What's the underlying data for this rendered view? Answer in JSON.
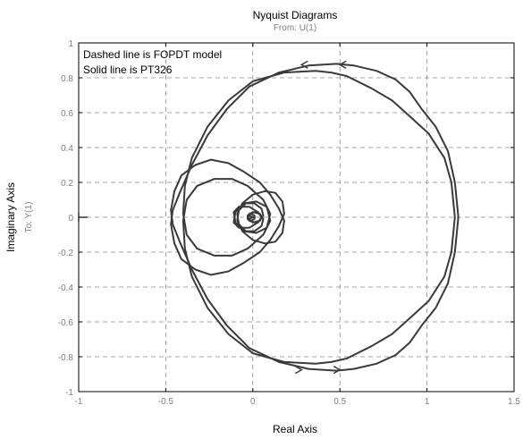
{
  "chart_data": {
    "type": "line",
    "title": "Nyquist Diagrams",
    "subtitle": "From: U(1)",
    "xlabel": "Real Axis",
    "ylabel": "Imaginary Axis",
    "ylabel2": "To: Y(1)",
    "annotations": [
      "Dashed line is FOPDT model",
      "Solid line is PT326"
    ],
    "xlim": [
      -1,
      1.5
    ],
    "ylim": [
      -1,
      1
    ],
    "xticks": [
      "-1",
      "-0.5",
      "0",
      "0.5",
      "1",
      "1.5"
    ],
    "yticks": [
      "-1",
      "-0.8",
      "-0.6",
      "-0.4",
      "-0.2",
      "0",
      "0.2",
      "0.4",
      "0.6",
      "0.8",
      "1"
    ],
    "grid": true,
    "colors": {
      "curve": "#3a3a3a",
      "grid": "#8a8a8a",
      "tick_label": "#7f7f7f"
    },
    "series": [
      {
        "x": [
          1.18,
          1.16,
          1.12,
          1.05,
          0.97,
          0.9,
          0.82,
          0.71,
          0.58,
          0.48,
          0.32,
          0.15,
          -0.02,
          -0.15,
          -0.26,
          -0.35,
          -0.42,
          -0.46,
          -0.47,
          -0.45,
          -0.41,
          -0.33,
          -0.24,
          -0.14,
          -0.05,
          0.04,
          0.1,
          0.15,
          0.18,
          0.17,
          0.13,
          0.07,
          0.0,
          -0.06,
          -0.09,
          -0.08,
          -0.04,
          0.01,
          0.05,
          0.06,
          0.04,
          0.01,
          -0.02,
          -0.03,
          -0.02,
          0.0
        ],
        "y": [
          0.0,
          0.2,
          0.38,
          0.52,
          0.62,
          0.72,
          0.79,
          0.84,
          0.87,
          0.88,
          0.87,
          0.83,
          0.75,
          0.62,
          0.47,
          0.3,
          0.14,
          0.04,
          -0.04,
          -0.15,
          -0.24,
          -0.3,
          -0.33,
          -0.31,
          -0.26,
          -0.2,
          -0.13,
          -0.05,
          0.02,
          0.09,
          0.14,
          0.15,
          0.13,
          0.08,
          0.02,
          -0.04,
          -0.08,
          -0.08,
          -0.05,
          -0.01,
          0.02,
          0.03,
          0.02,
          0.0,
          -0.01,
          0.0
        ]
      },
      {
        "x": [
          1.18,
          1.16,
          1.12,
          1.05,
          0.97,
          0.9,
          0.82,
          0.71,
          0.58,
          0.48,
          0.32,
          0.15,
          -0.02,
          -0.15,
          -0.26,
          -0.35,
          -0.42,
          -0.46,
          -0.47,
          -0.45,
          -0.41,
          -0.33,
          -0.24,
          -0.14,
          -0.05,
          0.04,
          0.1,
          0.15,
          0.18,
          0.17,
          0.13,
          0.07,
          0.0,
          -0.06,
          -0.09,
          -0.08,
          -0.04,
          0.01,
          0.05,
          0.06,
          0.04,
          0.01,
          -0.02,
          -0.03,
          -0.02,
          0.0
        ],
        "y": [
          0.0,
          -0.2,
          -0.38,
          -0.52,
          -0.62,
          -0.72,
          -0.79,
          -0.84,
          -0.87,
          -0.88,
          -0.87,
          -0.83,
          -0.75,
          -0.62,
          -0.47,
          -0.3,
          -0.14,
          -0.04,
          0.04,
          0.15,
          0.24,
          0.3,
          0.33,
          0.31,
          0.26,
          0.2,
          0.13,
          0.05,
          -0.02,
          -0.09,
          -0.14,
          -0.15,
          -0.13,
          -0.08,
          -0.02,
          0.04,
          0.08,
          0.08,
          0.05,
          0.01,
          -0.02,
          -0.03,
          -0.02,
          0.0,
          0.01,
          0.0
        ]
      },
      {
        "x": [
          1.16,
          1.14,
          1.1,
          1.01,
          0.9,
          0.8,
          0.68,
          0.54,
          0.45,
          0.36,
          0.18,
          0.0,
          -0.14,
          -0.26,
          -0.35,
          -0.39,
          -0.4,
          -0.38,
          -0.32,
          -0.22,
          -0.12,
          -0.03,
          0.06,
          0.1,
          0.08,
          0.02,
          -0.05,
          -0.1,
          -0.11,
          -0.08,
          -0.02,
          0.03,
          0.05,
          0.04,
          0.0,
          -0.03,
          -0.03,
          -0.01,
          0.01,
          0.01,
          0.0
        ],
        "y": [
          0.0,
          0.2,
          0.34,
          0.48,
          0.58,
          0.67,
          0.74,
          0.81,
          0.83,
          0.84,
          0.83,
          0.78,
          0.67,
          0.52,
          0.34,
          0.18,
          0.02,
          -0.1,
          -0.18,
          -0.22,
          -0.22,
          -0.18,
          -0.1,
          -0.02,
          0.06,
          0.09,
          0.08,
          0.03,
          -0.03,
          -0.06,
          -0.06,
          -0.03,
          0.0,
          0.02,
          0.03,
          0.01,
          -0.01,
          -0.02,
          -0.01,
          0.0,
          0.0
        ]
      },
      {
        "x": [
          1.16,
          1.14,
          1.1,
          1.01,
          0.9,
          0.8,
          0.68,
          0.54,
          0.45,
          0.36,
          0.18,
          0.0,
          -0.14,
          -0.26,
          -0.35,
          -0.39,
          -0.4,
          -0.38,
          -0.32,
          -0.22,
          -0.12,
          -0.03,
          0.06,
          0.1,
          0.08,
          0.02,
          -0.05,
          -0.1,
          -0.11,
          -0.08,
          -0.02,
          0.03,
          0.05,
          0.04,
          0.0,
          -0.03,
          -0.03,
          -0.01,
          0.01,
          0.01,
          0.0
        ],
        "y": [
          0.0,
          -0.2,
          -0.34,
          -0.48,
          -0.58,
          -0.67,
          -0.74,
          -0.81,
          -0.83,
          -0.84,
          -0.83,
          -0.78,
          -0.67,
          -0.52,
          -0.34,
          -0.18,
          -0.02,
          0.1,
          0.18,
          0.22,
          0.22,
          0.18,
          0.1,
          0.02,
          -0.06,
          -0.09,
          -0.08,
          -0.03,
          0.03,
          0.06,
          0.06,
          0.03,
          0.0,
          -0.02,
          -0.03,
          -0.01,
          0.01,
          0.02,
          0.01,
          0.0,
          0.0
        ]
      }
    ],
    "arrows": [
      {
        "x": 0.28,
        "y": 0.875,
        "dir": "left"
      },
      {
        "x": 0.5,
        "y": 0.875,
        "dir": "left"
      },
      {
        "x": 0.28,
        "y": -0.875,
        "dir": "right"
      },
      {
        "x": 0.5,
        "y": -0.875,
        "dir": "right"
      }
    ],
    "marker": {
      "x": -1,
      "y": 0,
      "symbol": "+"
    }
  }
}
